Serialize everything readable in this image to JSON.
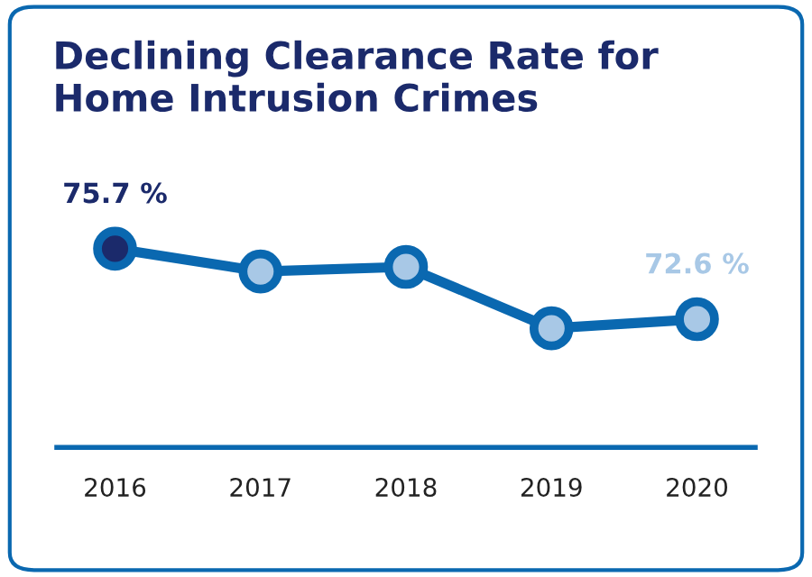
{
  "chart_data": {
    "type": "line",
    "title": "Declining Clearance Rate for\nHome Intrusion Crimes",
    "categories": [
      "2016",
      "2017",
      "2018",
      "2019",
      "2020"
    ],
    "series": [
      {
        "color": "#0a68b0",
        "values": [
          75.7,
          74.7,
          74.9,
          72.2,
          72.6
        ],
        "colors": [
          "#1b2a6b",
          "#a8c8e6",
          "#a8c8e6",
          "#a8c8e6",
          "#a8c8e6"
        ],
        "value_labels": [
          "75.7 %",
          null,
          null,
          null,
          "72.6 %"
        ]
      }
    ],
    "tick_labels": "x",
    "marker": "circle",
    "line_style": "solid",
    "grid": false,
    "legend": false
  }
}
